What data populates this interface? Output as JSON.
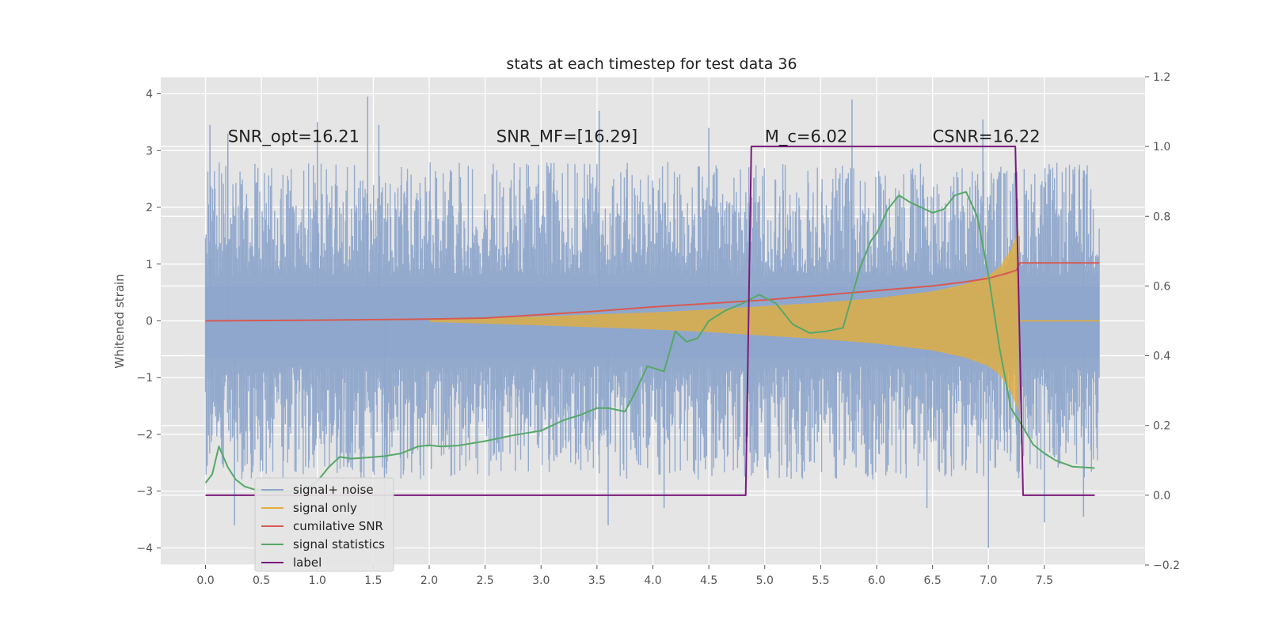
{
  "chart_data": {
    "type": "line",
    "title": "stats at each timestep for test data 36",
    "ylabel": "Whitened strain",
    "xlabel": "",
    "xlim": [
      -0.4,
      8.4
    ],
    "ylim_left": [
      -4.3,
      4.3
    ],
    "ylim_right": [
      -0.2,
      1.2
    ],
    "x_ticks": [
      0.0,
      0.5,
      1.0,
      1.5,
      2.0,
      2.5,
      3.0,
      3.5,
      4.0,
      4.5,
      5.0,
      5.5,
      6.0,
      6.5,
      7.0,
      7.5
    ],
    "x_tick_labels": [
      "0.0",
      "0.5",
      "1.0",
      "1.5",
      "2.0",
      "2.5",
      "3.0",
      "3.5",
      "4.0",
      "4.5",
      "5.0",
      "5.5",
      "6.0",
      "6.5",
      "7.0",
      "7.5"
    ],
    "y_ticks_left": [
      -4,
      -3,
      -2,
      -1,
      0,
      1,
      2,
      3,
      4
    ],
    "y_tick_labels_left": [
      "−4",
      "−3",
      "−2",
      "−1",
      "0",
      "1",
      "2",
      "3",
      "4"
    ],
    "y_ticks_right": [
      -0.2,
      0.0,
      0.2,
      0.4,
      0.6,
      0.8,
      1.0,
      1.2
    ],
    "y_tick_labels_right": [
      "−0.2",
      "0.0",
      "0.2",
      "0.4",
      "0.6",
      "0.8",
      "1.0",
      "1.2"
    ],
    "grid": true,
    "legend_position": "lower-left",
    "annotations": [
      {
        "text": "SNR_opt=16.21",
        "x": 0.2,
        "y": 3.25
      },
      {
        "text": "SNR_MF=[16.29]",
        "x": 2.6,
        "y": 3.25
      },
      {
        "text": "M_c=6.02",
        "x": 5.0,
        "y": 3.25
      },
      {
        "text": "CSNR=16.22",
        "x": 6.5,
        "y": 3.25
      }
    ],
    "series": [
      {
        "name": "signal+ noise",
        "axis": "left",
        "color": "#8fa6cb",
        "kind": "noise-band",
        "x_range": [
          0.0,
          7.99
        ],
        "dense_band": [
          -0.65,
          0.6
        ],
        "typical_extent": [
          -2.3,
          2.3
        ],
        "peaks": [
          {
            "x": 0.04,
            "y": 3.45
          },
          {
            "x": 0.2,
            "y": 3.3
          },
          {
            "x": 0.26,
            "y": -3.6
          },
          {
            "x": 1.0,
            "y": 3.5
          },
          {
            "x": 1.45,
            "y": 3.95
          },
          {
            "x": 1.55,
            "y": 3.45
          },
          {
            "x": 1.6,
            "y": -3.5
          },
          {
            "x": 3.52,
            "y": 3.7
          },
          {
            "x": 3.6,
            "y": -3.6
          },
          {
            "x": 4.1,
            "y": -3.3
          },
          {
            "x": 4.5,
            "y": 3.4
          },
          {
            "x": 5.78,
            "y": 3.9
          },
          {
            "x": 6.95,
            "y": 3.55
          },
          {
            "x": 7.0,
            "y": -4.0
          },
          {
            "x": 7.5,
            "y": -3.55
          },
          {
            "x": 7.85,
            "y": 2.65
          },
          {
            "x": 7.85,
            "y": -3.45
          },
          {
            "x": 6.45,
            "y": -3.3
          }
        ]
      },
      {
        "name": "signal only",
        "axis": "left",
        "color": "#e5ae38",
        "kind": "chirp-envelope",
        "x": [
          2.0,
          3.0,
          4.0,
          4.5,
          5.0,
          5.5,
          6.0,
          6.5,
          6.8,
          7.0,
          7.1,
          7.2,
          7.27
        ],
        "amplitude": [
          0.02,
          0.08,
          0.15,
          0.2,
          0.26,
          0.32,
          0.4,
          0.52,
          0.65,
          0.8,
          0.95,
          1.25,
          1.6
        ]
      },
      {
        "name": "cumilative SNR",
        "axis": "right",
        "color": "#d65a52",
        "x": [
          0.0,
          1.0,
          2.0,
          2.5,
          3.0,
          3.5,
          4.0,
          4.5,
          5.0,
          5.5,
          6.0,
          6.5,
          6.8,
          7.0,
          7.15,
          7.25,
          7.28,
          7.99
        ],
        "y": [
          0.5,
          0.502,
          0.505,
          0.508,
          0.518,
          0.528,
          0.54,
          0.55,
          0.56,
          0.573,
          0.587,
          0.6,
          0.612,
          0.622,
          0.635,
          0.645,
          0.666,
          0.666
        ]
      },
      {
        "name": "signal statistics",
        "axis": "right",
        "color": "#55a868",
        "x": [
          0.0,
          0.06,
          0.12,
          0.2,
          0.27,
          0.35,
          0.45,
          0.6,
          0.75,
          0.9,
          1.0,
          1.1,
          1.2,
          1.3,
          1.45,
          1.6,
          1.75,
          1.9,
          2.0,
          2.1,
          2.25,
          2.5,
          2.75,
          3.0,
          3.2,
          3.35,
          3.5,
          3.6,
          3.75,
          3.85,
          3.95,
          4.1,
          4.2,
          4.3,
          4.4,
          4.5,
          4.65,
          4.8,
          4.95,
          5.1,
          5.25,
          5.4,
          5.55,
          5.7,
          5.85,
          5.95,
          6.0,
          6.1,
          6.2,
          6.3,
          6.5,
          6.6,
          6.7,
          6.8,
          6.9,
          7.0,
          7.1,
          7.2,
          7.3,
          7.4,
          7.5,
          7.6,
          7.75,
          7.85,
          7.95
        ],
        "y": [
          0.035,
          0.06,
          0.14,
          0.08,
          0.045,
          0.025,
          0.015,
          0.01,
          0.01,
          0.02,
          0.04,
          0.08,
          0.11,
          0.105,
          0.108,
          0.112,
          0.12,
          0.14,
          0.143,
          0.14,
          0.142,
          0.155,
          0.172,
          0.185,
          0.215,
          0.23,
          0.25,
          0.25,
          0.24,
          0.3,
          0.37,
          0.355,
          0.47,
          0.44,
          0.45,
          0.5,
          0.53,
          0.55,
          0.575,
          0.55,
          0.49,
          0.465,
          0.47,
          0.48,
          0.65,
          0.73,
          0.75,
          0.82,
          0.86,
          0.84,
          0.81,
          0.82,
          0.86,
          0.87,
          0.8,
          0.63,
          0.42,
          0.25,
          0.2,
          0.145,
          0.12,
          0.1,
          0.082,
          0.08,
          0.078
        ]
      },
      {
        "name": "label",
        "axis": "right",
        "color": "#7a1a7a",
        "x": [
          0.0,
          4.83,
          4.88,
          7.24,
          7.31,
          7.95
        ],
        "y": [
          0.0,
          0.0,
          1.0,
          1.0,
          0.0,
          0.0
        ]
      }
    ]
  }
}
